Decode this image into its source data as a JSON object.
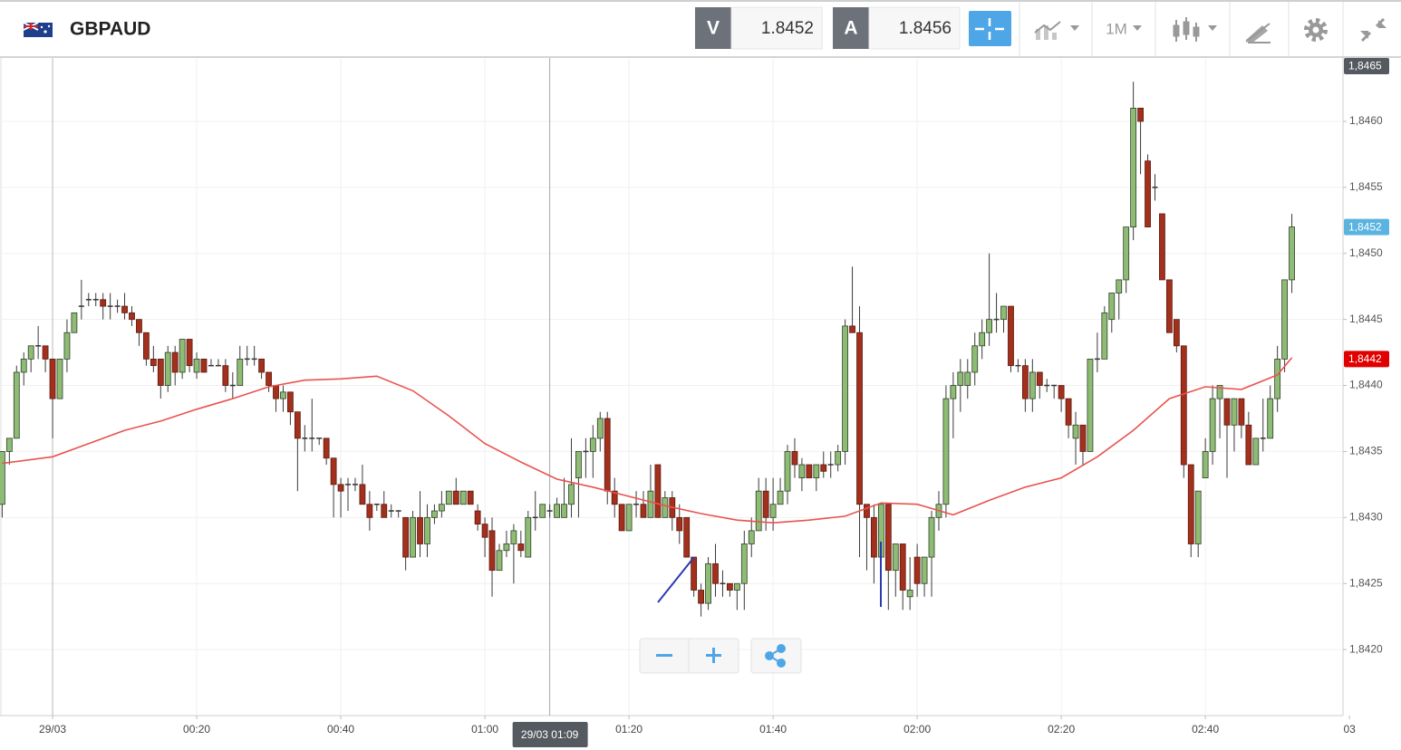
{
  "header": {
    "symbol": "GBPAUD",
    "bid_label": "V",
    "bid": 1.8452,
    "ask_label": "A",
    "ask": 1.8456,
    "timeframe": "1M"
  },
  "chart_data": {
    "type": "candlestick",
    "x": [
      -7,
      -6,
      -5,
      -4,
      -3,
      -2,
      -1,
      0,
      1,
      2,
      3,
      4,
      5,
      6,
      7,
      8,
      9,
      10,
      11,
      12,
      13,
      14,
      15,
      16,
      17,
      18,
      19,
      20,
      21,
      22,
      23,
      24,
      25,
      26,
      27,
      28,
      29,
      30,
      31,
      32,
      33,
      34,
      35,
      36,
      37,
      38,
      39,
      40,
      41,
      42,
      43,
      44,
      45,
      46,
      47,
      48,
      49,
      50,
      51,
      52,
      53,
      54,
      55,
      56,
      57,
      58,
      59,
      60,
      61,
      62,
      63,
      64,
      65,
      66,
      67,
      68,
      69,
      70,
      71,
      72,
      73,
      74,
      75,
      76,
      77,
      78,
      79,
      80,
      81,
      82,
      83,
      84,
      85,
      86,
      87,
      88,
      89,
      90,
      91,
      92,
      93,
      94,
      95,
      96,
      97,
      98,
      99,
      100,
      101,
      102,
      103,
      104,
      105,
      106,
      107,
      108,
      109,
      110,
      111,
      112,
      113,
      114,
      115,
      116,
      117,
      118,
      119,
      120,
      121,
      122,
      123,
      124,
      125,
      126,
      127,
      128,
      129,
      130,
      131,
      132,
      133,
      134,
      135,
      136,
      137,
      138,
      139,
      140,
      141,
      142,
      143,
      144,
      145,
      146,
      147,
      148,
      149,
      150,
      151,
      152,
      153,
      154,
      155,
      156,
      157,
      158,
      159,
      160,
      161,
      162,
      163,
      164,
      165,
      166,
      167,
      168,
      169,
      170,
      171,
      172
    ],
    "open": [
      1.8431,
      1.8435,
      1.8436,
      1.8441,
      1.8442,
      1.8443,
      1.8443,
      1.8442,
      1.8439,
      1.8442,
      1.8444,
      1.8446,
      1.84465,
      1.84465,
      1.84465,
      1.8446,
      1.8446,
      1.8446,
      1.84455,
      1.8445,
      1.8444,
      1.8442,
      1.8442,
      1.844,
      1.84425,
      1.8441,
      1.84435,
      1.8441,
      1.8442,
      1.84415,
      1.84415,
      1.84415,
      1.844,
      1.844,
      1.8442,
      1.8442,
      1.8442,
      1.8441,
      1.844,
      1.8439,
      1.84395,
      1.8438,
      1.8436,
      1.8436,
      1.8436,
      1.8436,
      1.84345,
      1.84325,
      1.84325,
      1.84325,
      1.84325,
      1.8431,
      1.8431,
      1.8431,
      1.84305,
      1.84305,
      1.843,
      1.8427,
      1.843,
      1.8428,
      1.843,
      1.84305,
      1.8431,
      1.8432,
      1.8431,
      1.8432,
      1.84305,
      1.84295,
      1.8429,
      1.8426,
      1.84275,
      1.8428,
      1.8428,
      1.8427,
      1.843,
      1.843,
      1.84305,
      1.843,
      1.843,
      1.8431,
      1.8433,
      1.8435,
      1.8435,
      1.8436,
      1.84375,
      1.8432,
      1.8431,
      1.8429,
      1.8431,
      1.8431,
      1.843,
      1.8434,
      1.843,
      1.84315,
      1.843,
      1.843,
      1.8427,
      1.84245,
      1.84235,
      1.84265,
      1.8425,
      1.8425,
      1.84245,
      1.8425,
      1.8428,
      1.8429,
      1.8432,
      1.843,
      1.8431,
      1.8432,
      1.8435,
      1.8433,
      1.8434,
      1.8433,
      1.8434,
      1.8434,
      1.8434,
      1.8435,
      1.84445,
      1.8444,
      1.8431,
      1.843,
      1.8427,
      1.8431,
      1.8426,
      1.8428,
      1.8424,
      1.8427,
      1.8425,
      1.8427,
      1.843,
      1.8431,
      1.8439,
      1.844,
      1.844,
      1.8441,
      1.8443,
      1.8444,
      1.8445,
      1.8445,
      1.8446,
      1.84415,
      1.84415,
      1.8439,
      1.8441,
      1.844,
      1.844,
      1.844,
      1.8439,
      1.8436,
      1.8437,
      1.8435,
      1.8442,
      1.8442,
      1.8445,
      1.8447,
      1.8448,
      1.8452,
      1.8461,
      1.8457,
      1.8455,
      1.8453,
      1.8448,
      1.8445,
      1.8443,
      1.8434,
      1.8428,
      1.8433,
      1.8435,
      1.8439,
      1.8439,
      1.8437,
      1.8439,
      1.8437,
      1.8434,
      1.8436,
      1.8436,
      1.8439,
      1.8442,
      1.8448
    ],
    "high": [
      1.8435,
      1.8436,
      1.84415,
      1.84425,
      1.8443,
      1.84445,
      1.8443,
      1.8442,
      1.8442,
      1.8445,
      1.84455,
      1.8448,
      1.8447,
      1.8447,
      1.8447,
      1.8447,
      1.84465,
      1.8447,
      1.8446,
      1.8445,
      1.8444,
      1.8443,
      1.8442,
      1.8443,
      1.8443,
      1.84435,
      1.84435,
      1.84425,
      1.8442,
      1.8442,
      1.8442,
      1.8442,
      1.8441,
      1.8443,
      1.8443,
      1.8443,
      1.8442,
      1.8441,
      1.844,
      1.844,
      1.84395,
      1.8438,
      1.8437,
      1.8439,
      1.8436,
      1.8436,
      1.84345,
      1.8433,
      1.8433,
      1.8433,
      1.8434,
      1.8432,
      1.8431,
      1.8432,
      1.8431,
      1.84305,
      1.843,
      1.84305,
      1.8432,
      1.8431,
      1.8431,
      1.8432,
      1.8432,
      1.8433,
      1.8432,
      1.8432,
      1.8431,
      1.843,
      1.843,
      1.8428,
      1.8429,
      1.84295,
      1.8429,
      1.84305,
      1.8432,
      1.8431,
      1.8431,
      1.84315,
      1.8433,
      1.8436,
      1.8435,
      1.8436,
      1.8437,
      1.8438,
      1.8438,
      1.8433,
      1.8431,
      1.8431,
      1.8432,
      1.8432,
      1.8434,
      1.8434,
      1.8432,
      1.8432,
      1.8431,
      1.843,
      1.8427,
      1.8425,
      1.8427,
      1.8428,
      1.8426,
      1.8425,
      1.8425,
      1.8429,
      1.843,
      1.8433,
      1.8433,
      1.8433,
      1.8433,
      1.84355,
      1.8436,
      1.84345,
      1.8434,
      1.8434,
      1.8435,
      1.8435,
      1.84355,
      1.8445,
      1.8449,
      1.8446,
      1.8431,
      1.8431,
      1.8431,
      1.8431,
      1.8428,
      1.8428,
      1.8427,
      1.8428,
      1.8427,
      1.84305,
      1.8432,
      1.844,
      1.8441,
      1.8442,
      1.8442,
      1.8444,
      1.8445,
      1.845,
      1.8447,
      1.8446,
      1.8446,
      1.8442,
      1.8442,
      1.8442,
      1.8441,
      1.84405,
      1.844,
      1.844,
      1.8439,
      1.8438,
      1.8437,
      1.8442,
      1.8444,
      1.8446,
      1.8447,
      1.8448,
      1.8452,
      1.8463,
      1.8461,
      1.84575,
      1.8456,
      1.8453,
      1.8448,
      1.8445,
      1.8443,
      1.8434,
      1.8432,
      1.8436,
      1.844,
      1.844,
      1.8439,
      1.8439,
      1.8439,
      1.8438,
      1.8436,
      1.8439,
      1.844,
      1.8443,
      1.8448,
      1.8453
    ],
    "low": [
      1.843,
      1.8434,
      1.8436,
      1.844,
      1.8441,
      1.8442,
      1.8441,
      1.8436,
      1.8439,
      1.8441,
      1.8444,
      1.8445,
      1.8446,
      1.8446,
      1.8445,
      1.8445,
      1.84455,
      1.8445,
      1.84445,
      1.8443,
      1.84415,
      1.8441,
      1.8439,
      1.84395,
      1.844,
      1.84405,
      1.8441,
      1.84405,
      1.8441,
      1.84415,
      1.84415,
      1.84395,
      1.8439,
      1.844,
      1.84415,
      1.84415,
      1.84405,
      1.84395,
      1.8438,
      1.8438,
      1.8437,
      1.8432,
      1.8435,
      1.8435,
      1.84355,
      1.8434,
      1.843,
      1.843,
      1.84305,
      1.8432,
      1.8431,
      1.8429,
      1.84305,
      1.843,
      1.843,
      1.843,
      1.8426,
      1.8427,
      1.8427,
      1.8427,
      1.84295,
      1.843,
      1.8431,
      1.8431,
      1.8431,
      1.8431,
      1.8429,
      1.8427,
      1.8424,
      1.8426,
      1.8427,
      1.8425,
      1.8427,
      1.8427,
      1.8429,
      1.843,
      1.843,
      1.843,
      1.843,
      1.843,
      1.843,
      1.8433,
      1.8433,
      1.8435,
      1.8431,
      1.843,
      1.8429,
      1.8429,
      1.843,
      1.843,
      1.843,
      1.843,
      1.843,
      1.8429,
      1.8428,
      1.8427,
      1.8424,
      1.84225,
      1.8423,
      1.8424,
      1.8424,
      1.8424,
      1.8423,
      1.8423,
      1.8427,
      1.8429,
      1.8429,
      1.8429,
      1.8431,
      1.8431,
      1.8433,
      1.8432,
      1.8433,
      1.8432,
      1.8433,
      1.8433,
      1.84335,
      1.8434,
      1.8444,
      1.8427,
      1.8426,
      1.8425,
      1.8427,
      1.8423,
      1.8424,
      1.8423,
      1.8423,
      1.8424,
      1.8424,
      1.8424,
      1.8429,
      1.843,
      1.8436,
      1.8438,
      1.8439,
      1.844,
      1.8442,
      1.8443,
      1.8444,
      1.8444,
      1.8441,
      1.8441,
      1.8438,
      1.8438,
      1.8439,
      1.84395,
      1.8439,
      1.8438,
      1.8436,
      1.8434,
      1.8434,
      1.8435,
      1.8441,
      1.8442,
      1.8444,
      1.8445,
      1.8447,
      1.8451,
      1.8456,
      1.8452,
      1.8454,
      1.8448,
      1.8444,
      1.84425,
      1.8433,
      1.8427,
      1.8427,
      1.8433,
      1.8434,
      1.8436,
      1.8433,
      1.8435,
      1.8436,
      1.8434,
      1.8434,
      1.8435,
      1.8436,
      1.8438,
      1.8441,
      1.8447
    ],
    "close": [
      1.8435,
      1.8436,
      1.8441,
      1.8442,
      1.8443,
      1.8443,
      1.8442,
      1.8439,
      1.8442,
      1.8444,
      1.84455,
      1.8446,
      1.84465,
      1.84465,
      1.8446,
      1.8446,
      1.8446,
      1.84455,
      1.8445,
      1.8444,
      1.8442,
      1.84415,
      1.844,
      1.84425,
      1.8441,
      1.84435,
      1.84415,
      1.8442,
      1.8441,
      1.84415,
      1.84415,
      1.844,
      1.844,
      1.8442,
      1.8442,
      1.8442,
      1.8441,
      1.844,
      1.8439,
      1.84395,
      1.8438,
      1.8436,
      1.8436,
      1.8436,
      1.8436,
      1.84345,
      1.84325,
      1.8432,
      1.84325,
      1.84325,
      1.8431,
      1.843,
      1.8431,
      1.843,
      1.84305,
      1.84305,
      1.8427,
      1.843,
      1.8428,
      1.843,
      1.84305,
      1.8431,
      1.8432,
      1.8431,
      1.8432,
      1.8431,
      1.84295,
      1.84285,
      1.8426,
      1.84275,
      1.8428,
      1.8429,
      1.84275,
      1.843,
      1.843,
      1.8431,
      1.84305,
      1.8431,
      1.8431,
      1.84325,
      1.8435,
      1.8435,
      1.8436,
      1.84375,
      1.8432,
      1.8431,
      1.8429,
      1.8431,
      1.8431,
      1.843,
      1.8432,
      1.843,
      1.84315,
      1.843,
      1.8429,
      1.8427,
      1.84245,
      1.84235,
      1.84265,
      1.8425,
      1.8425,
      1.84245,
      1.8425,
      1.8428,
      1.8429,
      1.8432,
      1.843,
      1.8431,
      1.8432,
      1.8435,
      1.8434,
      1.8434,
      1.8433,
      1.8434,
      1.84335,
      1.8434,
      1.8435,
      1.84445,
      1.8444,
      1.8431,
      1.843,
      1.8427,
      1.8431,
      1.8426,
      1.8428,
      1.84245,
      1.84245,
      1.8425,
      1.8427,
      1.843,
      1.8431,
      1.8439,
      1.844,
      1.8441,
      1.8441,
      1.8443,
      1.8444,
      1.8445,
      1.8445,
      1.8446,
      1.84415,
      1.84415,
      1.8439,
      1.8441,
      1.844,
      1.844,
      1.844,
      1.8439,
      1.8437,
      1.8437,
      1.8435,
      1.8442,
      1.8442,
      1.84455,
      1.8447,
      1.8448,
      1.8452,
      1.8461,
      1.846,
      1.8452,
      1.8455,
      1.8448,
      1.8444,
      1.8443,
      1.8434,
      1.8428,
      1.8432,
      1.8435,
      1.8439,
      1.844,
      1.8437,
      1.8439,
      1.8437,
      1.8434,
      1.8436,
      1.8436,
      1.8439,
      1.8442,
      1.8448,
      1.8452
    ],
    "up_color": "#8fbc74",
    "down_color": "#a3301c",
    "moving_average": {
      "color": "#e8534f",
      "x": [
        -7,
        0,
        5,
        10,
        15,
        20,
        25,
        30,
        35,
        40,
        45,
        50,
        55,
        60,
        65,
        70,
        75,
        80,
        85,
        90,
        95,
        100,
        105,
        110,
        115,
        120,
        125,
        130,
        135,
        140,
        145,
        150,
        155,
        160,
        165,
        170,
        172
      ],
      "values": [
        1.84341,
        1.84346,
        1.84356,
        1.84366,
        1.84373,
        1.84382,
        1.8439,
        1.84399,
        1.84404,
        1.84405,
        1.84407,
        1.84396,
        1.84377,
        1.84356,
        1.84342,
        1.84329,
        1.84323,
        1.84316,
        1.84309,
        1.84303,
        1.84298,
        1.84296,
        1.84298,
        1.84301,
        1.84311,
        1.8431,
        1.84302,
        1.84313,
        1.84323,
        1.8433,
        1.84346,
        1.84366,
        1.8439,
        1.84399,
        1.84397,
        1.84408,
        1.84421
      ]
    },
    "xlim": [
      -7.3,
      179.1
    ],
    "xticks": [
      {
        "value": 0,
        "label": "29/03"
      },
      {
        "value": 20,
        "label": "00:20"
      },
      {
        "value": 40,
        "label": "00:40"
      },
      {
        "value": 60,
        "label": "01:00"
      },
      {
        "value": 80,
        "label": "01:20"
      },
      {
        "value": 100,
        "label": "01:40"
      },
      {
        "value": 120,
        "label": "02:00"
      },
      {
        "value": 140,
        "label": "02:20"
      },
      {
        "value": 160,
        "label": "02:40"
      },
      {
        "value": 180,
        "label": "03"
      }
    ],
    "ylim": [
      1.8415,
      1.84648
    ],
    "yticks": [
      {
        "value": 1.842,
        "label": "1,8420"
      },
      {
        "value": 1.8425,
        "label": "1,8425"
      },
      {
        "value": 1.843,
        "label": "1,8430"
      },
      {
        "value": 1.8435,
        "label": "1,8435"
      },
      {
        "value": 1.844,
        "label": "1,8440"
      },
      {
        "value": 1.8445,
        "label": "1,8445"
      },
      {
        "value": 1.845,
        "label": "1,8450"
      },
      {
        "value": 1.8455,
        "label": "1,8455"
      },
      {
        "value": 1.846,
        "label": "1,8460"
      }
    ],
    "grid": true,
    "price_tags": [
      {
        "value": 1.8465,
        "label": "1,8465",
        "color": "#555a60"
      },
      {
        "value": 1.8452,
        "label": "1,8452",
        "color": "#5bb3e0"
      },
      {
        "value": 1.8442,
        "label": "1,8442",
        "color": "#e00000"
      }
    ],
    "crosshair": {
      "x": 69,
      "label": "29/03 01:09"
    }
  }
}
